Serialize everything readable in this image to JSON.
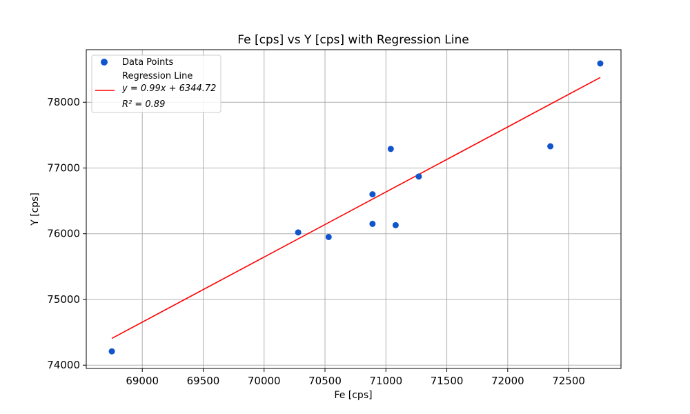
{
  "chart_data": {
    "type": "scatter",
    "title": "Fe [cps] vs Y [cps] with Regression Line",
    "xlabel": "Fe [cps]",
    "ylabel": "Y [cps]",
    "xlim": [
      68540,
      72930
    ],
    "ylim": [
      73950,
      78800
    ],
    "xticks": [
      69000,
      69500,
      70000,
      70500,
      71000,
      71500,
      72000,
      72500
    ],
    "yticks": [
      74000,
      75000,
      76000,
      77000,
      78000
    ],
    "grid": true,
    "legend_position": "top-left",
    "series": [
      {
        "name": "Data Points",
        "kind": "scatter",
        "color": "#1155cc",
        "points": [
          {
            "x": 68750,
            "y": 74210
          },
          {
            "x": 70280,
            "y": 76020
          },
          {
            "x": 70530,
            "y": 75950
          },
          {
            "x": 70890,
            "y": 76600
          },
          {
            "x": 70890,
            "y": 76150
          },
          {
            "x": 71040,
            "y": 77290
          },
          {
            "x": 71080,
            "y": 76130
          },
          {
            "x": 71270,
            "y": 76870
          },
          {
            "x": 72350,
            "y": 77330
          },
          {
            "x": 72760,
            "y": 78590
          }
        ]
      },
      {
        "name": "Regression Line",
        "kind": "line",
        "color": "#ff0000",
        "slope": 0.99,
        "intercept": 6344.72,
        "x_range": [
          68750,
          72760
        ],
        "equation_label": "y = 0.99x + 6344.72",
        "r2_label": "R² = 0.89"
      }
    ]
  }
}
